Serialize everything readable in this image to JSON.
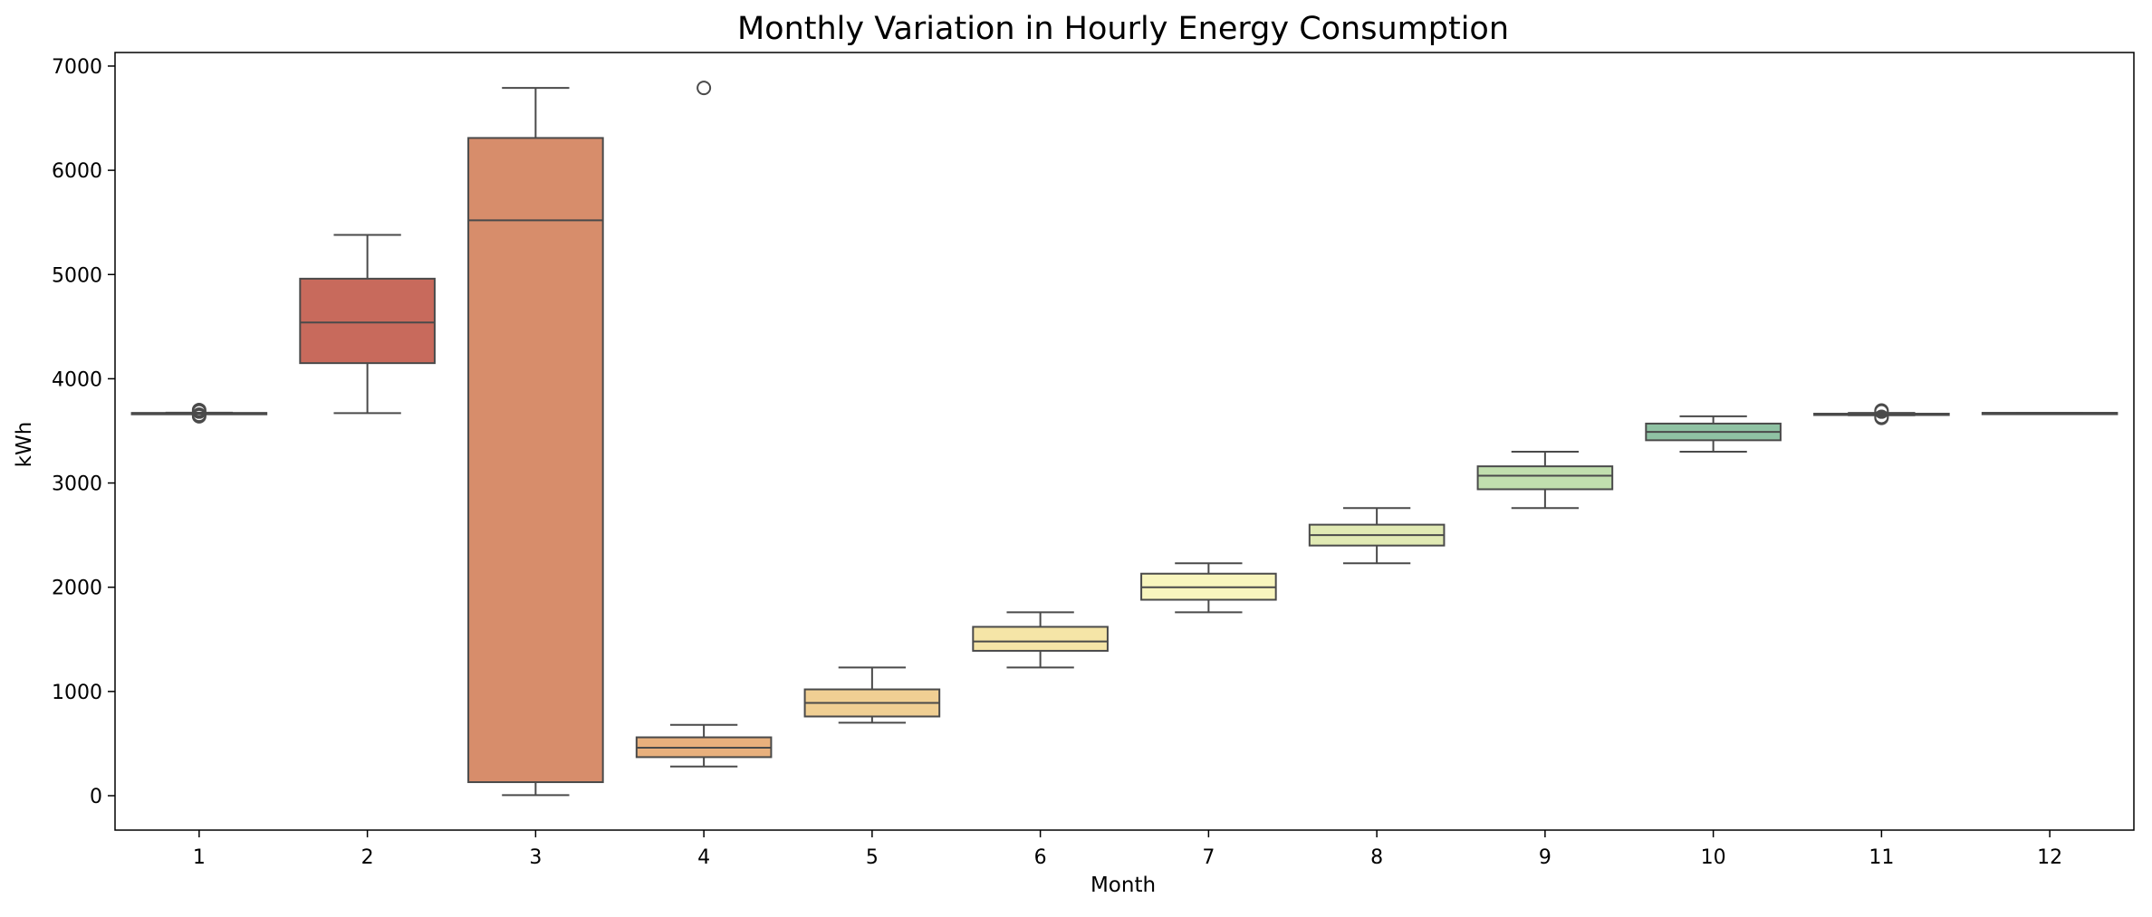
{
  "chart_data": {
    "type": "box",
    "title": "Monthly Variation in Hourly Energy Consumption",
    "xlabel": "Month",
    "ylabel": "kWh",
    "ylim": [
      -330,
      7130
    ],
    "yticks": [
      0,
      1000,
      2000,
      3000,
      4000,
      5000,
      6000,
      7000
    ],
    "grid": false,
    "categories": [
      "1",
      "2",
      "3",
      "4",
      "5",
      "6",
      "7",
      "8",
      "9",
      "10",
      "11",
      "12"
    ],
    "boxes": [
      {
        "category": "1",
        "whislo": 3665,
        "q1": 3668,
        "med": 3670,
        "q3": 3672,
        "whishi": 3675,
        "fliers": [
          3640,
          3655,
          3685,
          3700
        ],
        "color": "#a9d4c5"
      },
      {
        "category": "2",
        "whislo": 3670,
        "q1": 4150,
        "med": 4540,
        "q3": 4960,
        "whishi": 5380,
        "fliers": [],
        "color": "#c86a5c"
      },
      {
        "category": "3",
        "whislo": 5,
        "q1": 130,
        "med": 5520,
        "q3": 6310,
        "whishi": 6790,
        "fliers": [],
        "color": "#d78d6b"
      },
      {
        "category": "4",
        "whislo": 280,
        "q1": 370,
        "med": 460,
        "q3": 560,
        "whishi": 680,
        "fliers": [
          6790
        ],
        "color": "#e8b07d"
      },
      {
        "category": "5",
        "whislo": 700,
        "q1": 760,
        "med": 890,
        "q3": 1020,
        "whishi": 1230,
        "fliers": [],
        "color": "#f0cf93"
      },
      {
        "category": "6",
        "whislo": 1230,
        "q1": 1390,
        "med": 1480,
        "q3": 1620,
        "whishi": 1760,
        "fliers": [],
        "color": "#f5e5a7"
      },
      {
        "category": "7",
        "whislo": 1760,
        "q1": 1880,
        "med": 2000,
        "q3": 2130,
        "whishi": 2230,
        "fliers": [],
        "color": "#f8f5be"
      },
      {
        "category": "8",
        "whislo": 2230,
        "q1": 2400,
        "med": 2500,
        "q3": 2600,
        "whishi": 2760,
        "fliers": [],
        "color": "#e1eab4"
      },
      {
        "category": "9",
        "whislo": 2760,
        "q1": 2940,
        "med": 3070,
        "q3": 3160,
        "whishi": 3300,
        "fliers": [],
        "color": "#c1dfae"
      },
      {
        "category": "10",
        "whislo": 3300,
        "q1": 3410,
        "med": 3490,
        "q3": 3570,
        "whishi": 3640,
        "fliers": [],
        "color": "#8fc2a3"
      },
      {
        "category": "11",
        "whislo": 3650,
        "q1": 3655,
        "med": 3660,
        "q3": 3665,
        "whishi": 3672,
        "fliers": [
          3625,
          3635,
          3685,
          3695
        ],
        "color": "#6cab9d"
      },
      {
        "category": "12",
        "whislo": 3670,
        "q1": 3671,
        "med": 3672,
        "q3": 3673,
        "whishi": 3674,
        "fliers": [],
        "color": "#5b9fa8"
      }
    ]
  },
  "style": {
    "edge_color": "#4a4a4a",
    "axis_color": "#000000"
  }
}
